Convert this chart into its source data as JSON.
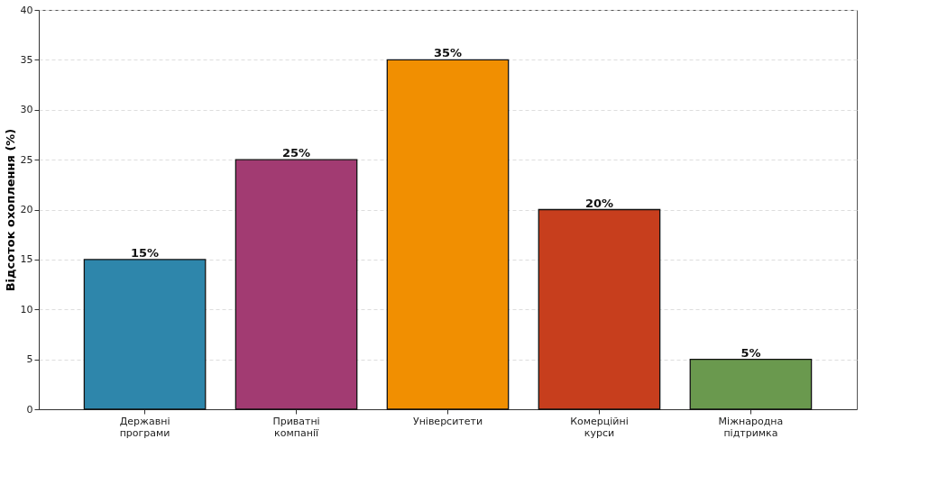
{
  "chart_data": {
    "type": "bar",
    "ylabel": "Відсоток охоплення (%)",
    "categories": [
      "Державні програми",
      "Приватні компанії",
      "Університети",
      "Комерційні курси",
      "Міжнародна підтримка"
    ],
    "values": [
      15,
      25,
      35,
      20,
      5
    ],
    "colors": [
      "#2e86ab",
      "#a23b72",
      "#f18f01",
      "#c73e1d",
      "#6a994e"
    ],
    "value_labels": [
      "15%",
      "25%",
      "35%",
      "20%",
      "5%"
    ],
    "ylim": [
      0,
      40
    ],
    "yticks": [
      0,
      5,
      10,
      15,
      20,
      25,
      30,
      35,
      40
    ],
    "grid": "y"
  }
}
